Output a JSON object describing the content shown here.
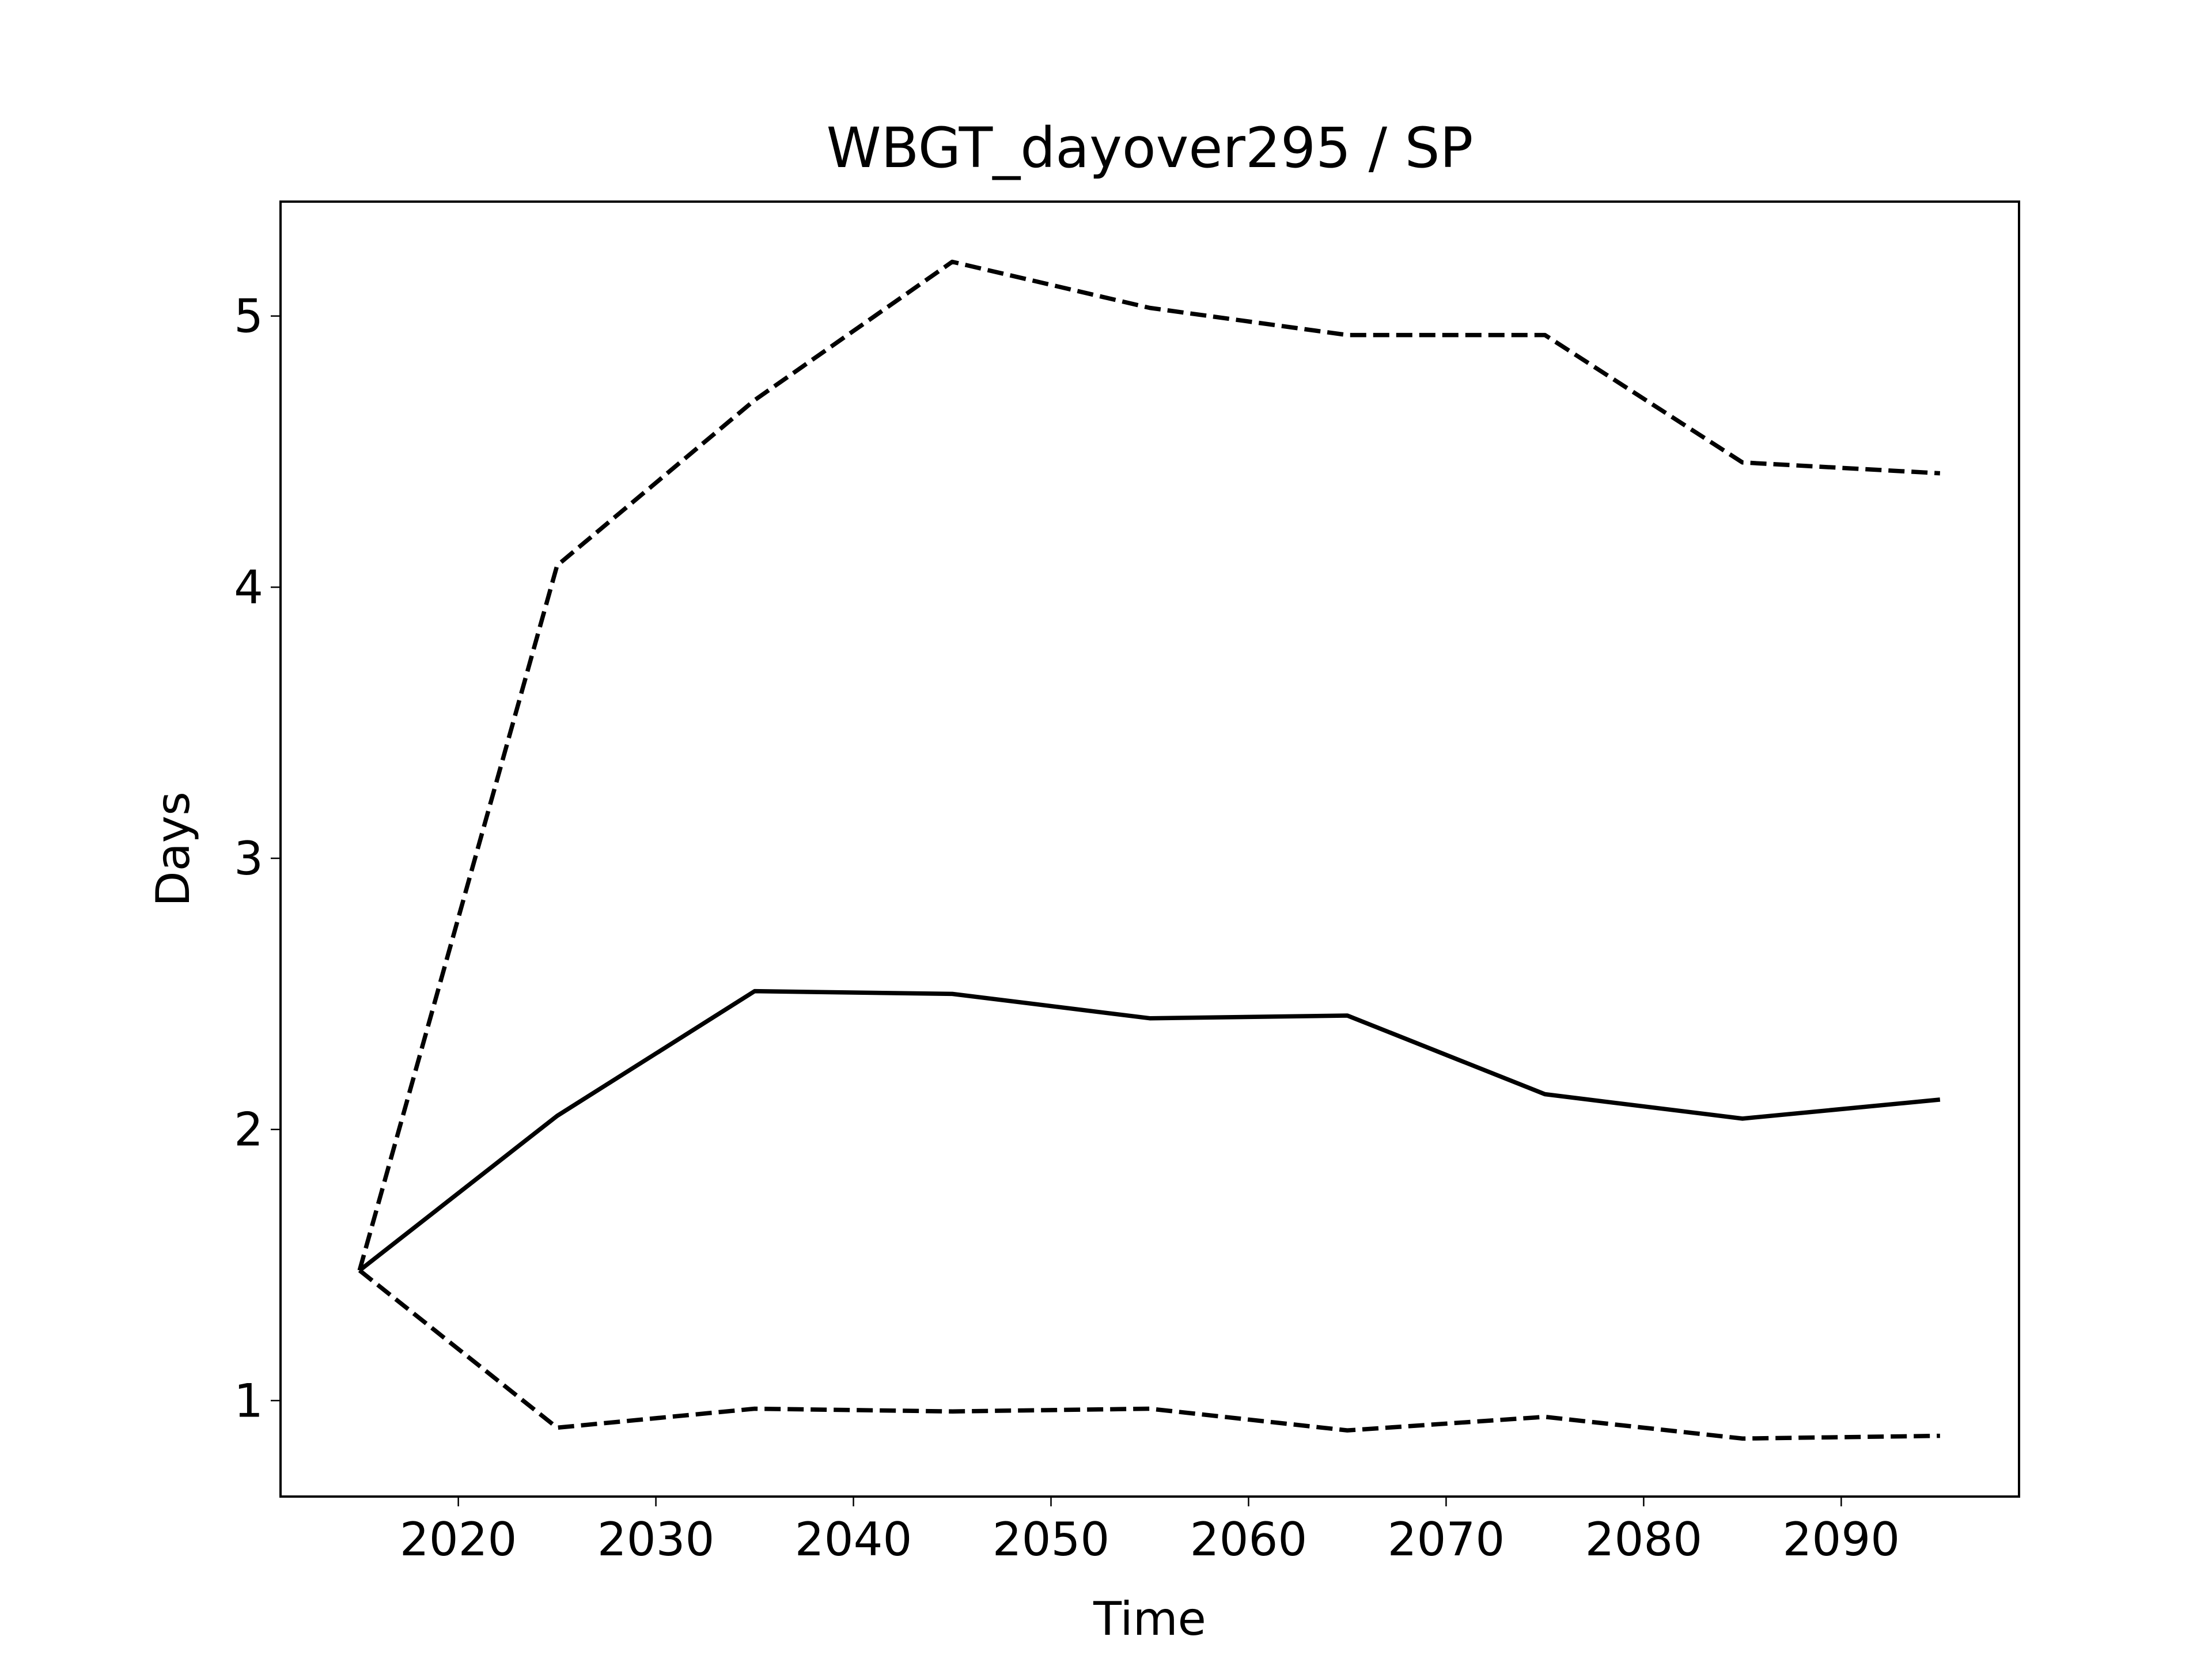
{
  "chart_data": {
    "type": "line",
    "title": "WBGT_dayover295 / SP",
    "xlabel": "Time",
    "ylabel": "Days",
    "x": [
      2015,
      2025,
      2035,
      2045,
      2055,
      2065,
      2075,
      2085,
      2095
    ],
    "series": [
      {
        "color": "#000000",
        "linestyle": "solid",
        "values": [
          1.48,
          2.05,
          2.51,
          2.5,
          2.41,
          2.42,
          2.13,
          2.04,
          2.11
        ]
      },
      {
        "color": "#000000",
        "linestyle": "dashed",
        "values": [
          1.48,
          4.08,
          4.69,
          5.2,
          5.03,
          4.93,
          4.93,
          4.46,
          4.42
        ]
      },
      {
        "color": "#000000",
        "linestyle": "dashed",
        "values": [
          1.48,
          0.9,
          0.97,
          0.96,
          0.97,
          0.89,
          0.94,
          0.86,
          0.87
        ]
      }
    ],
    "xlim": [
      2011,
      2099
    ],
    "xticks": [
      2020,
      2030,
      2040,
      2050,
      2060,
      2070,
      2080,
      2090
    ],
    "ylim": [
      0.646,
      5.422
    ],
    "yticks": [
      1,
      2,
      3,
      4,
      5
    ],
    "grid": false
  }
}
